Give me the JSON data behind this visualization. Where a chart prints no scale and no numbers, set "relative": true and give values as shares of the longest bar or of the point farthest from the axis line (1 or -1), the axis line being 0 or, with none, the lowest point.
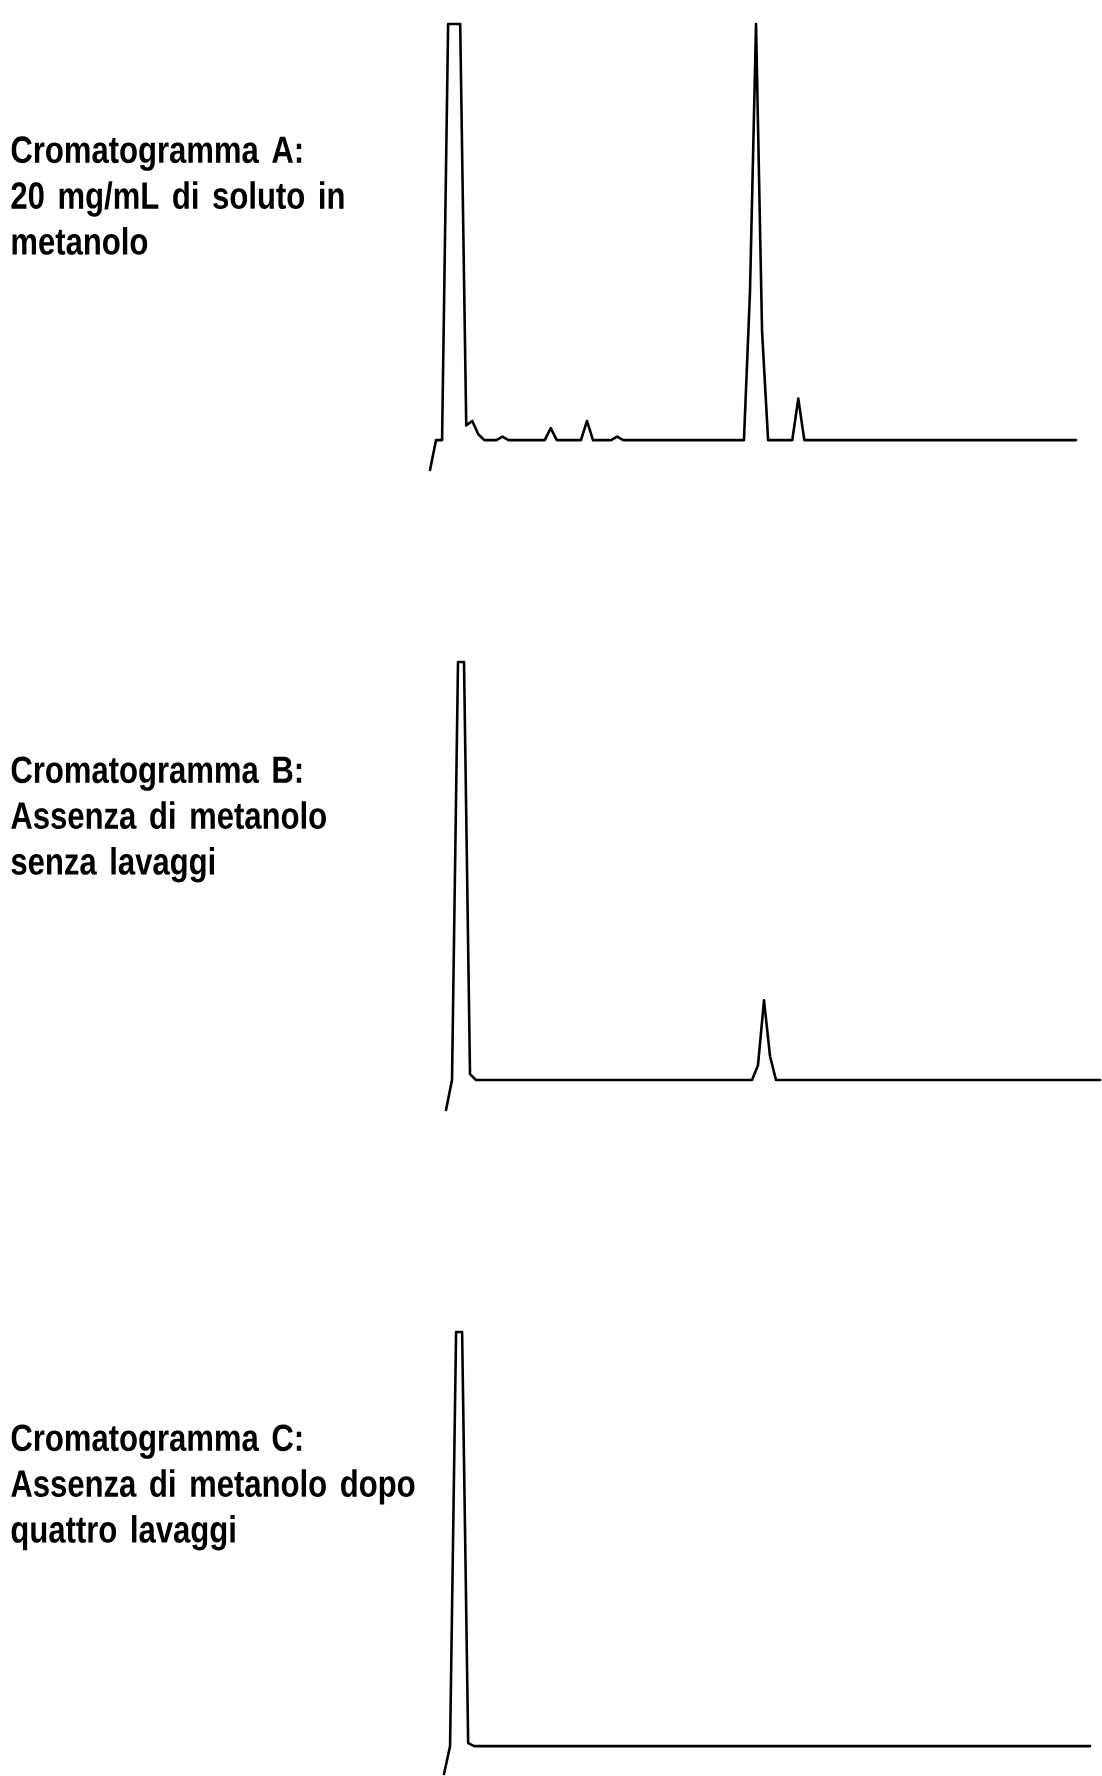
{
  "chart_data": [
    {
      "type": "line",
      "relative": true,
      "title": "Cromatogramma A:",
      "subtitle": "20 mg/mL di soluto in metanolo",
      "color": "#000000",
      "categories": [
        null,
        null,
        null,
        null,
        null,
        null,
        null,
        null,
        null,
        null,
        null,
        null,
        null,
        null,
        null,
        null,
        null,
        null,
        null,
        null,
        null,
        null,
        null,
        null,
        null,
        null,
        null,
        null,
        null,
        null,
        null,
        null,
        null,
        null,
        null,
        null,
        null,
        null,
        null,
        null,
        null,
        null,
        null,
        null,
        null,
        null,
        null,
        null,
        null,
        null,
        null,
        null,
        null,
        null,
        null,
        null,
        null,
        null,
        null,
        null,
        null,
        null,
        null,
        null,
        null,
        null,
        null,
        null,
        null,
        null,
        null,
        null,
        null,
        null,
        null,
        null,
        null,
        null,
        null,
        null,
        null,
        null,
        null,
        null,
        null,
        null,
        null,
        null,
        null,
        null,
        null,
        null,
        null,
        null,
        null,
        null,
        null,
        null,
        null,
        null,
        null,
        null,
        null,
        null,
        null,
        null,
        null,
        null
      ],
      "values": [
        0,
        0.067,
        0.067,
        1,
        1,
        1,
        0.1,
        0.11,
        0.08,
        0.067,
        0.067,
        0.067,
        0.075,
        0.067,
        0.067,
        0.067,
        0.067,
        0.067,
        0.067,
        0.067,
        0.094,
        0.067,
        0.067,
        0.067,
        0.067,
        0.067,
        0.11,
        0.067,
        0.067,
        0.067,
        0.067,
        0.075,
        0.067,
        0.067,
        0.067,
        0.067,
        0.067,
        0.067,
        0.067,
        0.067,
        0.067,
        0.067,
        0.067,
        0.067,
        0.067,
        0.067,
        0.067,
        0.067,
        0.067,
        0.067,
        0.067,
        0.067,
        0.067,
        0.4,
        1,
        0.31,
        0.067,
        0.067,
        0.067,
        0.067,
        0.067,
        0.16,
        0.067,
        0.067,
        0.067,
        0.067,
        0.067,
        0.067,
        0.067,
        0.067,
        0.067,
        0.067,
        0.067,
        0.067,
        0.067,
        0.067,
        0.067,
        0.067,
        0.067,
        0.067,
        0.067,
        0.067,
        0.067,
        0.067,
        0.067,
        0.067,
        0.067,
        0.067,
        0.067,
        0.067,
        0.067,
        0.067,
        0.067,
        0.067,
        0.067,
        0.067,
        0.067,
        0.067,
        0.067,
        0.067,
        0.067,
        0.067,
        0.067,
        0.067,
        0.067,
        0.067,
        0.067,
        0.067
      ]
    },
    {
      "type": "line",
      "relative": true,
      "title": "Cromatogramma B:",
      "subtitle": "Assenza di metanolo senza lavaggi",
      "color": "#000000",
      "categories": [
        null,
        null,
        null,
        null,
        null,
        null,
        null,
        null,
        null,
        null,
        null,
        null,
        null,
        null,
        null,
        null,
        null,
        null,
        null,
        null,
        null,
        null,
        null,
        null,
        null,
        null,
        null,
        null,
        null,
        null,
        null,
        null,
        null,
        null,
        null,
        null,
        null,
        null,
        null,
        null,
        null,
        null,
        null,
        null,
        null,
        null,
        null,
        null,
        null,
        null,
        null,
        null,
        null,
        null,
        null,
        null,
        null,
        null,
        null,
        null,
        null,
        null,
        null,
        null,
        null,
        null,
        null,
        null,
        null,
        null,
        null,
        null,
        null,
        null,
        null,
        null,
        null,
        null,
        null,
        null,
        null,
        null,
        null,
        null,
        null,
        null,
        null,
        null,
        null,
        null,
        null,
        null,
        null,
        null,
        null,
        null,
        null,
        null,
        null,
        null,
        null,
        null,
        null,
        null,
        null,
        null,
        null,
        null,
        null,
        null
      ],
      "values": [
        0,
        0.067,
        1,
        1,
        0.08,
        0.067,
        0.067,
        0.067,
        0.067,
        0.067,
        0.067,
        0.067,
        0.067,
        0.067,
        0.067,
        0.067,
        0.067,
        0.067,
        0.067,
        0.067,
        0.067,
        0.067,
        0.067,
        0.067,
        0.067,
        0.067,
        0.067,
        0.067,
        0.067,
        0.067,
        0.067,
        0.067,
        0.067,
        0.067,
        0.067,
        0.067,
        0.067,
        0.067,
        0.067,
        0.067,
        0.067,
        0.067,
        0.067,
        0.067,
        0.067,
        0.067,
        0.067,
        0.067,
        0.067,
        0.067,
        0.067,
        0.067,
        0.1,
        0.245,
        0.12,
        0.067,
        0.067,
        0.067,
        0.067,
        0.067,
        0.067,
        0.067,
        0.067,
        0.067,
        0.067,
        0.067,
        0.067,
        0.067,
        0.067,
        0.067,
        0.067,
        0.067,
        0.067,
        0.067,
        0.067,
        0.067,
        0.067,
        0.067,
        0.067,
        0.067,
        0.067,
        0.067,
        0.067,
        0.067,
        0.067,
        0.067,
        0.067,
        0.067,
        0.067,
        0.067,
        0.067,
        0.067,
        0.067,
        0.067,
        0.067,
        0.067,
        0.067,
        0.067,
        0.067,
        0.067,
        0.067,
        0.067,
        0.067,
        0.067,
        0.067,
        0.067,
        0.067,
        0.067,
        0.067,
        0.067
      ]
    },
    {
      "type": "line",
      "relative": true,
      "title": "Cromatogramma C:",
      "subtitle": "Assenza di metanolo dopo quattro lavaggi",
      "color": "#000000",
      "categories": [
        null,
        null,
        null,
        null,
        null,
        null,
        null,
        null,
        null,
        null,
        null,
        null,
        null,
        null,
        null,
        null,
        null,
        null,
        null,
        null,
        null,
        null,
        null,
        null,
        null,
        null,
        null,
        null,
        null,
        null,
        null,
        null,
        null,
        null,
        null,
        null,
        null,
        null,
        null,
        null,
        null,
        null,
        null,
        null,
        null,
        null,
        null,
        null,
        null,
        null,
        null,
        null,
        null,
        null,
        null,
        null,
        null,
        null,
        null,
        null,
        null,
        null,
        null,
        null,
        null,
        null,
        null,
        null,
        null,
        null,
        null,
        null,
        null,
        null,
        null,
        null,
        null,
        null,
        null,
        null,
        null,
        null,
        null,
        null,
        null,
        null,
        null,
        null,
        null,
        null,
        null,
        null,
        null,
        null,
        null,
        null,
        null,
        null,
        null,
        null,
        null,
        null,
        null,
        null,
        null,
        null,
        null,
        null
      ],
      "values": [
        0,
        0.063,
        1,
        1,
        0.07,
        0.063,
        0.063,
        0.063,
        0.063,
        0.063,
        0.063,
        0.063,
        0.063,
        0.063,
        0.063,
        0.063,
        0.063,
        0.063,
        0.063,
        0.063,
        0.063,
        0.063,
        0.063,
        0.063,
        0.063,
        0.063,
        0.063,
        0.063,
        0.063,
        0.063,
        0.063,
        0.063,
        0.063,
        0.063,
        0.063,
        0.063,
        0.063,
        0.063,
        0.063,
        0.063,
        0.063,
        0.063,
        0.063,
        0.063,
        0.063,
        0.063,
        0.063,
        0.063,
        0.063,
        0.063,
        0.063,
        0.063,
        0.063,
        0.063,
        0.063,
        0.063,
        0.063,
        0.063,
        0.063,
        0.063,
        0.063,
        0.063,
        0.063,
        0.063,
        0.063,
        0.063,
        0.063,
        0.063,
        0.063,
        0.063,
        0.063,
        0.063,
        0.063,
        0.063,
        0.063,
        0.063,
        0.063,
        0.063,
        0.063,
        0.063,
        0.063,
        0.063,
        0.063,
        0.063,
        0.063,
        0.063,
        0.063,
        0.063,
        0.063,
        0.063,
        0.063,
        0.063,
        0.063,
        0.063,
        0.063,
        0.063,
        0.063,
        0.063,
        0.063,
        0.063,
        0.063,
        0.063,
        0.063,
        0.063,
        0.063,
        0.063,
        0.063,
        0.063
      ]
    }
  ]
}
